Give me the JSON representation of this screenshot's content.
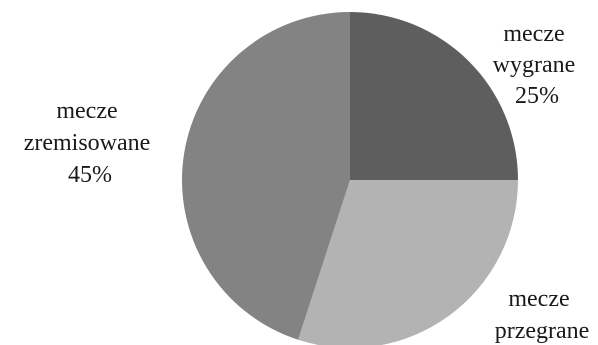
{
  "chart_data": {
    "type": "pie",
    "slices": [
      {
        "label_lines": [
          "mecze",
          "wygrane",
          "25%"
        ],
        "value": 25,
        "color": "#5e5e5e"
      },
      {
        "label_lines": [
          "mecze",
          "przegrane"
        ],
        "value": 30,
        "color": "#b3b3b3"
      },
      {
        "label_lines": [
          "mecze",
          "zremisowane",
          "45%"
        ],
        "value": 45,
        "color": "#838383"
      }
    ],
    "start": "top",
    "direction": "clockwise"
  }
}
